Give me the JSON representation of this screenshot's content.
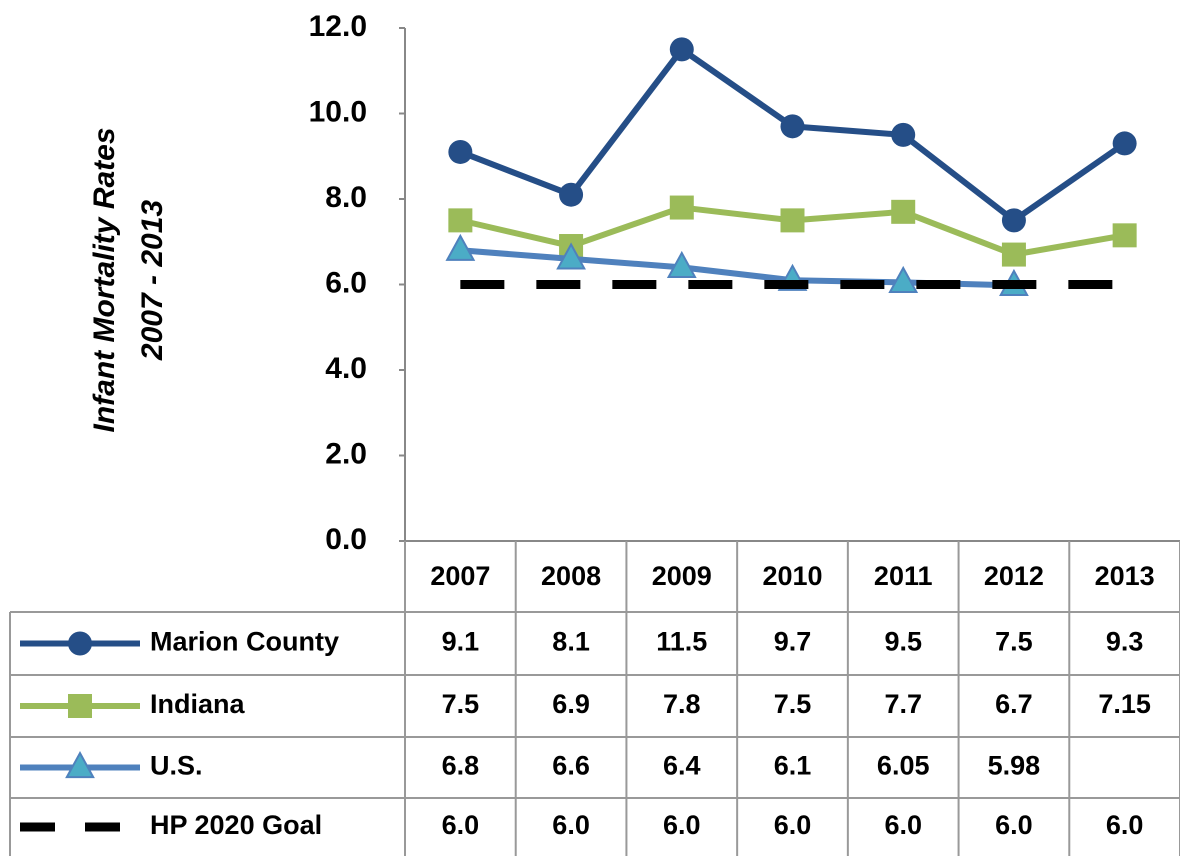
{
  "chart_data": {
    "type": "line",
    "ylabel": [
      "Infant Mortality Rates",
      "2007 - 2013"
    ],
    "categories": [
      "2007",
      "2008",
      "2009",
      "2010",
      "2011",
      "2012",
      "2013"
    ],
    "series": [
      {
        "name": "Marion County",
        "color": "#254e87",
        "marker": "circle",
        "dash": false,
        "values": [
          9.1,
          8.1,
          11.5,
          9.7,
          9.5,
          7.5,
          9.3
        ]
      },
      {
        "name": "Indiana",
        "color": "#9bbb59",
        "marker": "square",
        "dash": false,
        "values": [
          7.5,
          6.9,
          7.8,
          7.5,
          7.7,
          6.7,
          7.15
        ]
      },
      {
        "name": "U.S.",
        "color": "#4f81bd",
        "marker_color": "#4bacc6",
        "marker": "triangle",
        "dash": false,
        "values": [
          6.8,
          6.6,
          6.4,
          6.1,
          6.05,
          5.98,
          null
        ]
      },
      {
        "name": "HP 2020 Goal",
        "color": "#000000",
        "marker": "none",
        "dash": true,
        "values": [
          6,
          6,
          6,
          6,
          6,
          6,
          6
        ],
        "value_labels": [
          "6.0",
          "6.0",
          "6.0",
          "6.0",
          "6.0",
          "6.0",
          "6.0"
        ]
      }
    ],
    "ylim": [
      0,
      12
    ],
    "yticks": [
      {
        "value": 0,
        "label": "0.0"
      },
      {
        "value": 2,
        "label": "2.0"
      },
      {
        "value": 4,
        "label": "4.0"
      },
      {
        "value": 6,
        "label": "6.0"
      },
      {
        "value": 8,
        "label": "8.0"
      },
      {
        "value": 10,
        "label": "10.0"
      },
      {
        "value": 12,
        "label": "12.0"
      }
    ],
    "data_table": true
  }
}
